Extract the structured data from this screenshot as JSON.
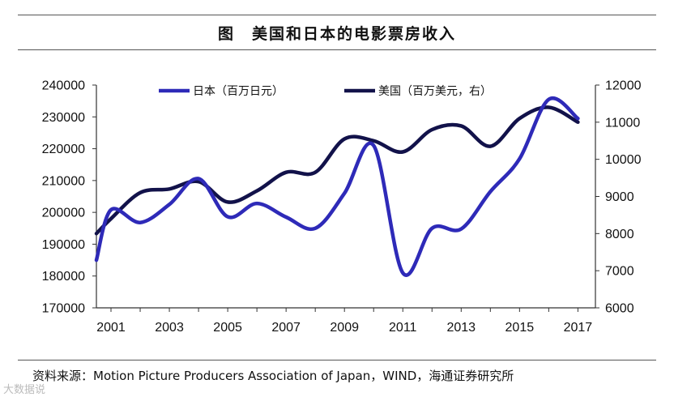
{
  "figure": {
    "title": "图　美国和日本的电影票房收入",
    "source": "资料来源：Motion Picture Producers Association of Japan，WIND，海通证券研究所",
    "watermark": "大数据说"
  },
  "colors": {
    "japan": "#2e2ab8",
    "usa": "#12124a",
    "axis": "#333333"
  },
  "chart_data": {
    "type": "line",
    "title": "美国和日本的电影票房收入",
    "x_ticks": [
      "2001",
      "2003",
      "2005",
      "2007",
      "2009",
      "2011",
      "2013",
      "2015",
      "2017"
    ],
    "xlim": [
      2000.5,
      2017.6
    ],
    "ylim_left": [
      170000,
      240000
    ],
    "yticks_left": [
      "240000",
      "230000",
      "220000",
      "210000",
      "200000",
      "190000",
      "180000",
      "170000"
    ],
    "ylim_right": [
      6000,
      12000
    ],
    "yticks_right": [
      "12000",
      "11000",
      "10000",
      "9000",
      "8000",
      "7000",
      "6000"
    ],
    "grid": false,
    "legend_position": "top",
    "series": [
      {
        "name": "日本（百万日元）",
        "axis": "left",
        "x": [
          2000.5,
          2001,
          2002,
          2003,
          2004,
          2005,
          2006,
          2007,
          2008,
          2009,
          2010,
          2011,
          2012,
          2013,
          2014,
          2015,
          2016,
          2017
        ],
        "y": [
          185000,
          200800,
          196800,
          202500,
          210600,
          198600,
          202800,
          198500,
          195000,
          206000,
          221000,
          181000,
          195000,
          194800,
          206500,
          216800,
          235500,
          229500
        ]
      },
      {
        "name": "美国（百万美元，右）",
        "axis": "right",
        "x": [
          2000.5,
          2001,
          2002,
          2003,
          2004,
          2005,
          2006,
          2007,
          2008,
          2009,
          2010,
          2011,
          2012,
          2013,
          2014,
          2015,
          2016,
          2017
        ],
        "y": [
          8000,
          8400,
          9100,
          9200,
          9400,
          8850,
          9150,
          9650,
          9650,
          10550,
          10500,
          10200,
          10800,
          10900,
          10350,
          11100,
          11400,
          11000
        ]
      }
    ]
  }
}
